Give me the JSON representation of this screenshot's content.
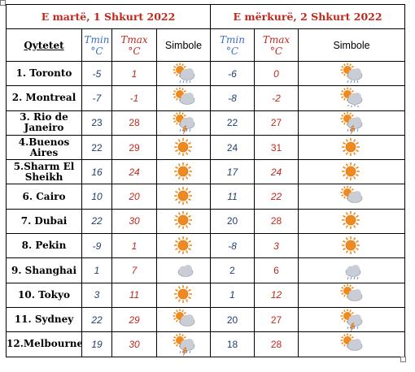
{
  "table": {
    "day1_title": "E martë, 1 Shkurt 2022",
    "day2_title": "E mërkurë, 2 Shkurt 2022",
    "col_city": "Qytetet",
    "tmin_label": "Tmin",
    "tmax_label": "Tmax",
    "unit": "°C",
    "sym_label": "Simbole",
    "rows": [
      {
        "city": "1. Toronto",
        "d1_min": "-5",
        "d1_max": "1",
        "d1_icon": "sun-cloud-rain-icon",
        "d2_min": "-6",
        "d2_max": "0",
        "d2_icon": "sun-cloud-rain-icon"
      },
      {
        "city": "2. Montreal",
        "d1_min": "-7",
        "d1_max": "-1",
        "d1_icon": "sun-cloud-icon",
        "d2_min": "-8",
        "d2_max": "-2",
        "d2_icon": "sun-cloud-snow-icon"
      },
      {
        "city": "3. Rio de Janeiro",
        "d1_min": "23",
        "d1_max": "28",
        "d1_icon": "sun-cloud-storm-icon",
        "d2_min": "22",
        "d2_max": "27",
        "d2_icon": "sun-cloud-storm-icon"
      },
      {
        "city": "4.Buenos Aires",
        "d1_min": "22",
        "d1_max": "29",
        "d1_icon": "sun-icon",
        "d2_min": "24",
        "d2_max": "31",
        "d2_icon": "sun-icon"
      },
      {
        "city": "5.Sharm El Sheikh",
        "d1_min": "16",
        "d1_max": "24",
        "d1_icon": "sun-icon",
        "d2_min": "17",
        "d2_max": "24",
        "d2_icon": "sun-icon"
      },
      {
        "city": "6. Cairo",
        "d1_min": "10",
        "d1_max": "20",
        "d1_icon": "sun-icon",
        "d2_min": "11",
        "d2_max": "22",
        "d2_icon": "sun-cloud-icon"
      },
      {
        "city": "7. Dubai",
        "d1_min": "22",
        "d1_max": "30",
        "d1_icon": "sun-icon",
        "d2_min": "20",
        "d2_max": "28",
        "d2_icon": "sun-icon"
      },
      {
        "city": "8. Pekin",
        "d1_min": "-9",
        "d1_max": "1",
        "d1_icon": "sun-icon",
        "d2_min": "-8",
        "d2_max": "3",
        "d2_icon": "sun-icon"
      },
      {
        "city": "9. Shanghai",
        "d1_min": "1",
        "d1_max": "7",
        "d1_icon": "cloud-icon",
        "d2_min": "2",
        "d2_max": "6",
        "d2_icon": "cloud-rain-icon"
      },
      {
        "city": "10. Tokyo",
        "d1_min": "3",
        "d1_max": "11",
        "d1_icon": "sun-icon",
        "d2_min": "1",
        "d2_max": "12",
        "d2_icon": "sun-cloud-icon"
      },
      {
        "city": "11. Sydney",
        "d1_min": "22",
        "d1_max": "29",
        "d1_icon": "sun-cloud-icon",
        "d2_min": "20",
        "d2_max": "27",
        "d2_icon": "sun-cloud-storm-icon"
      },
      {
        "city": "12.Melbourne",
        "d1_min": "19",
        "d1_max": "30",
        "d1_icon": "sun-cloud-storm-icon",
        "d2_min": "18",
        "d2_max": "28",
        "d2_icon": "sun-cloud-icon"
      }
    ]
  },
  "colors": {
    "title_red": "#c0281c",
    "tmin_blue": "#3a6fc2",
    "value_navy": "#24406e",
    "sun": "#f08a1c",
    "cloud": "#c9cdd6"
  }
}
